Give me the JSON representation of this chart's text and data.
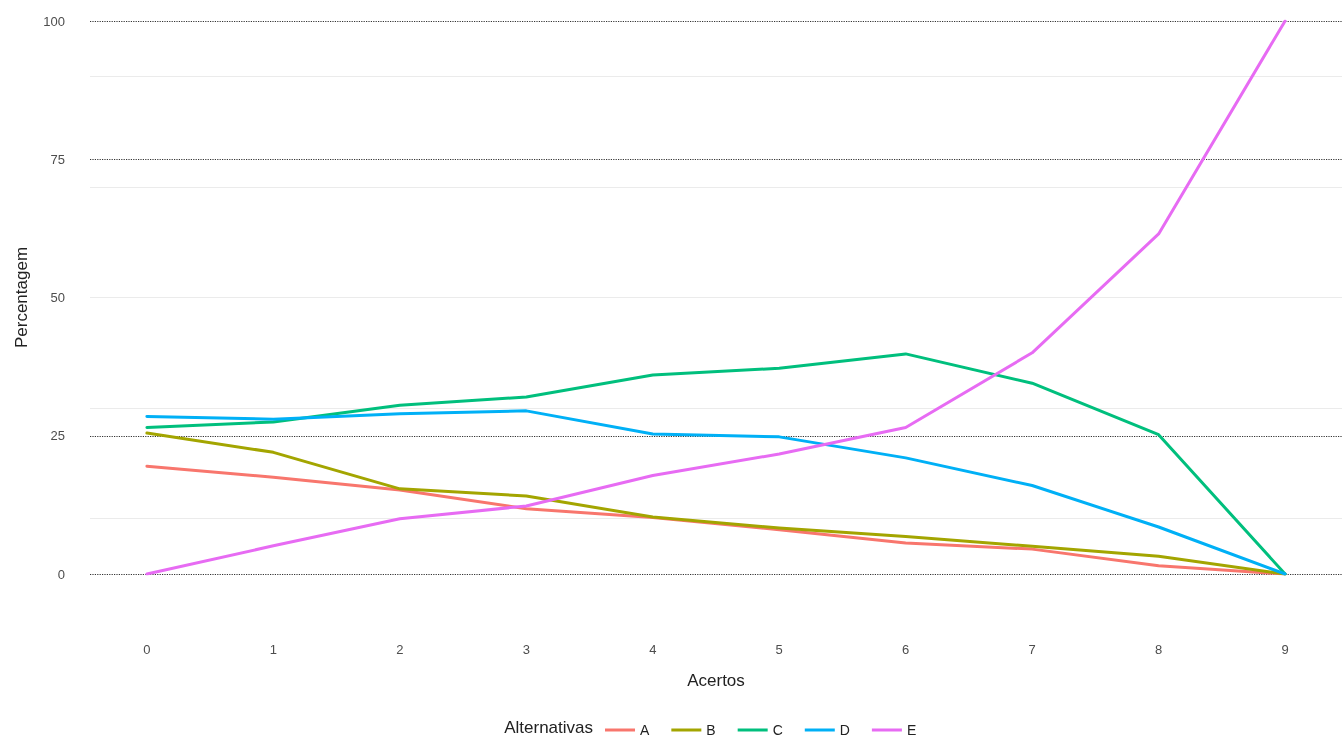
{
  "chart_data": {
    "type": "line",
    "xlabel": "Acertos",
    "ylabel": "Percentagem",
    "legend_title": "Alternativas",
    "x": [
      0,
      1,
      2,
      3,
      4,
      5,
      6,
      7,
      8,
      9
    ],
    "series": [
      {
        "name": "A",
        "color": "#f8766d",
        "values": [
          19.5,
          17.5,
          15.2,
          11.8,
          10.2,
          8.0,
          5.6,
          4.5,
          1.5,
          0
        ]
      },
      {
        "name": "B",
        "color": "#a3a500",
        "values": [
          25.5,
          22,
          15.4,
          14.1,
          10.3,
          8.3,
          6.8,
          5.0,
          3.2,
          0
        ]
      },
      {
        "name": "C",
        "color": "#00bf7d",
        "values": [
          26.5,
          27.5,
          30.5,
          32,
          36,
          37.2,
          39.8,
          34.5,
          25.2,
          0
        ]
      },
      {
        "name": "D",
        "color": "#00b0f6",
        "values": [
          28.5,
          28,
          29,
          29.5,
          25.3,
          24.8,
          21,
          16,
          8.5,
          0
        ]
      },
      {
        "name": "E",
        "color": "#e76bf3",
        "values": [
          0,
          5.1,
          10,
          12.3,
          17.8,
          21.7,
          26.5,
          40,
          61.5,
          100
        ]
      }
    ],
    "xlim": [
      -0.45,
      9.45
    ],
    "xticks": [
      0,
      1,
      2,
      3,
      4,
      5,
      6,
      7,
      8,
      9
    ],
    "ylim": [
      0,
      100
    ],
    "yticks": [
      0,
      25,
      50,
      75,
      100
    ],
    "grid": "y",
    "legend": "bottom",
    "marker": "none",
    "line_style": "solid"
  }
}
